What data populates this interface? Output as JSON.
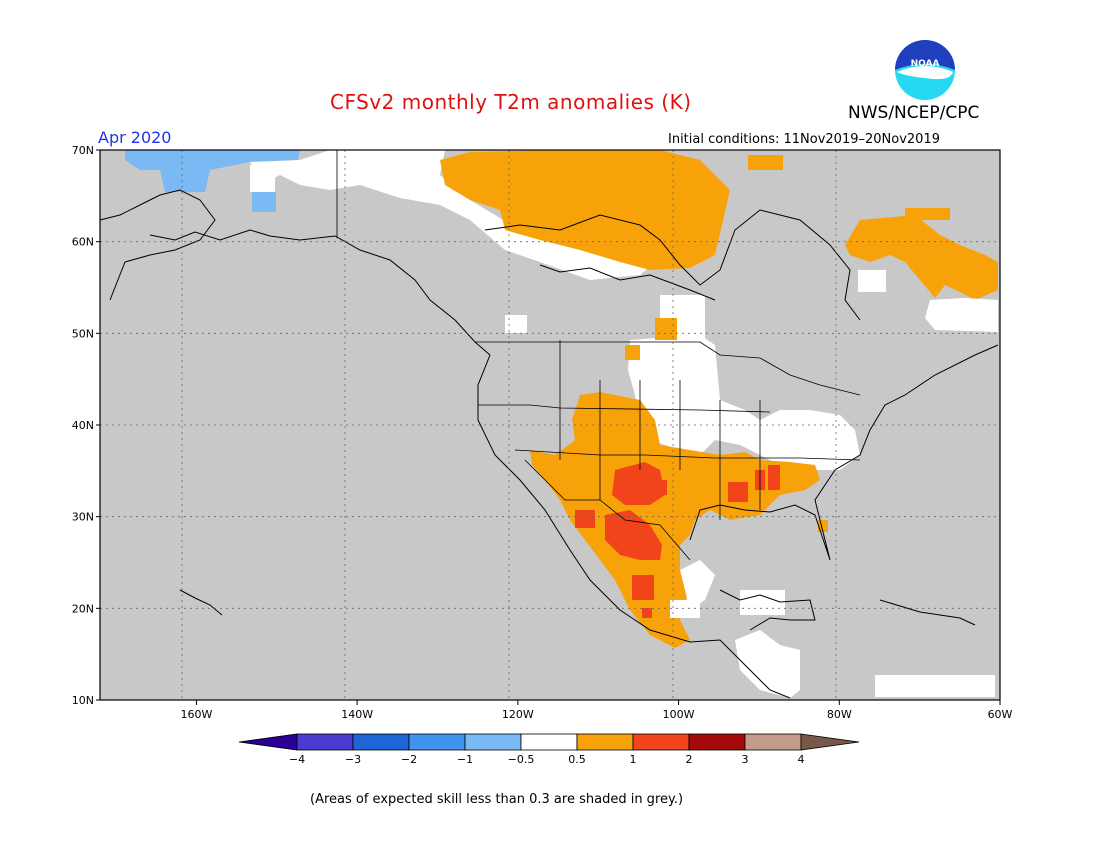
{
  "title": "CFSv2 monthly T2m anomalies (K)",
  "agency": "NWS/NCEP/CPC",
  "logo": {
    "text": "NOAA",
    "colors": {
      "outer": "#26d9f0",
      "inner": "#1f3fbf",
      "bird": "#ffffff"
    }
  },
  "valid_month": "Apr 2020",
  "initial_conditions": "Initial conditions: 11Nov2019–20Nov2019",
  "footnote": "(Areas of expected skill less than 0.3 are shaded in grey.)",
  "map": {
    "lon_range": [
      -172,
      -60
    ],
    "lat_range": [
      10,
      70
    ],
    "lon_ticks": [
      "160W",
      "140W",
      "120W",
      "100W",
      "80W",
      "60W"
    ],
    "lat_ticks": [
      "10N",
      "20N",
      "30N",
      "40N",
      "50N",
      "60N",
      "70N"
    ],
    "colors": {
      "grey_low_skill": "#c8c8c8",
      "neutral": "#ffffff",
      "cool_1": "#7ab9f3",
      "warm_1": "#f8a20a",
      "warm_2": "#f2441b",
      "warm_3": "#a40a0a"
    }
  },
  "colorbar": {
    "labels": [
      "−4",
      "−3",
      "−2",
      "−1",
      "−0.5",
      "0.5",
      "1",
      "2",
      "3",
      "4"
    ],
    "colors": [
      "#2a0096",
      "#4a3bd3",
      "#1e66d7",
      "#3f94ed",
      "#7ab9f3",
      "#ffffff",
      "#f8a20a",
      "#f2441b",
      "#a40a0a",
      "#c49c8c",
      "#785848"
    ]
  }
}
